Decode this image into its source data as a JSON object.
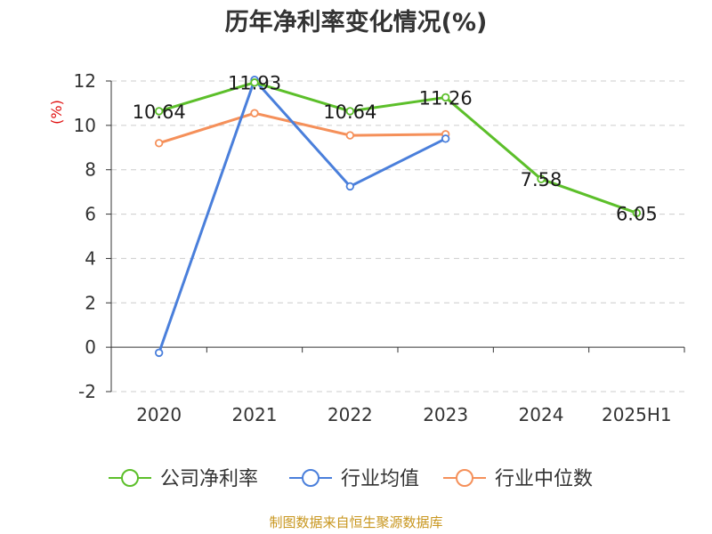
{
  "chart_data": {
    "type": "line",
    "title": "历年净利率变化情况(%)",
    "ylabel": "(%)",
    "xlabel": "",
    "categories": [
      "2020",
      "2021",
      "2022",
      "2023",
      "2024",
      "2025H1"
    ],
    "ylim": [
      -2,
      12
    ],
    "yticks": [
      -2,
      0,
      2,
      4,
      6,
      8,
      10,
      12
    ],
    "grid": true,
    "legend_position": "bottom",
    "series": [
      {
        "name": "公司净利率",
        "color": "#5cbf2a",
        "values": [
          10.64,
          11.93,
          10.64,
          11.26,
          7.58,
          6.05
        ],
        "data_labels": [
          "10.64",
          "11.93",
          "10.64",
          "11.26",
          "7.58",
          "6.05"
        ]
      },
      {
        "name": "行业均值",
        "color": "#4a7fdb",
        "values": [
          -0.25,
          12.05,
          7.25,
          9.4,
          null,
          null
        ]
      },
      {
        "name": "行业中位数",
        "color": "#f5905a",
        "values": [
          9.2,
          10.55,
          9.55,
          9.6,
          null,
          null
        ]
      }
    ],
    "source": "制图数据来自恒生聚源数据库"
  }
}
